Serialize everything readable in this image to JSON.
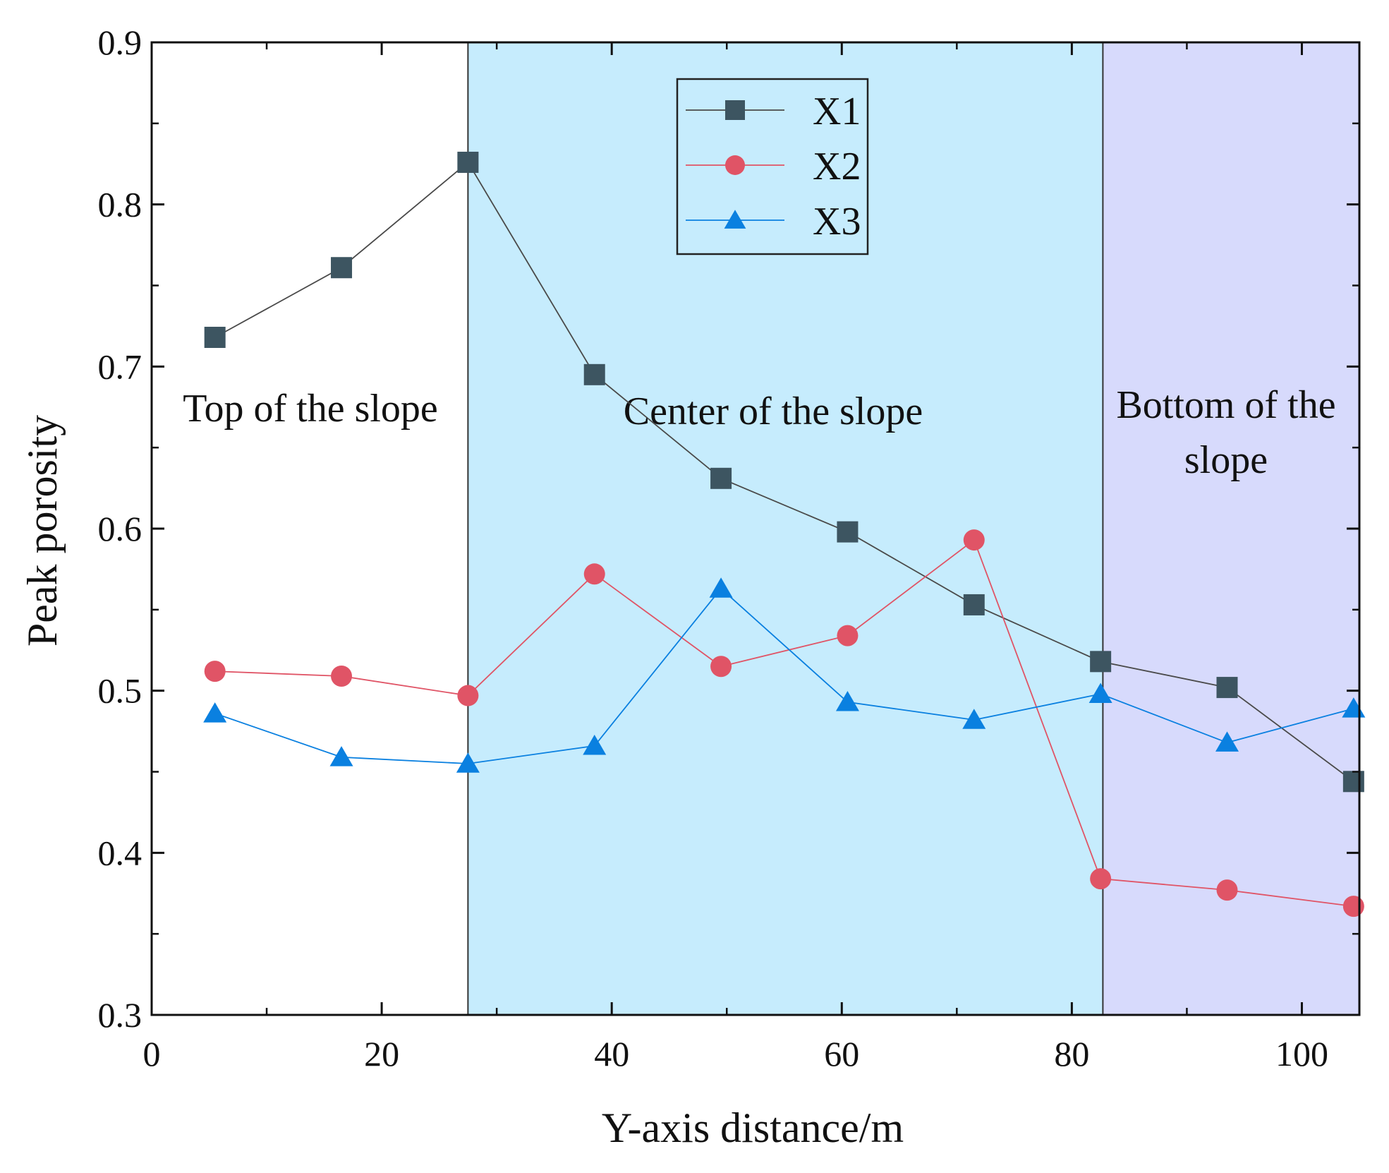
{
  "chart_data": {
    "type": "line",
    "xlabel": "Y-axis distance/m",
    "ylabel": "Peak porosity",
    "xlim": [
      0,
      105
    ],
    "ylim": [
      0.3,
      0.9
    ],
    "xticks": [
      0,
      20,
      40,
      60,
      80,
      100
    ],
    "xtick_labels": [
      "0",
      "20",
      "40",
      "60",
      "80",
      "100"
    ],
    "yticks": [
      0.3,
      0.4,
      0.5,
      0.6,
      0.7,
      0.8,
      0.9
    ],
    "ytick_labels": [
      "0.3",
      "0.4",
      "0.5",
      "0.6",
      "0.7",
      "0.8",
      "0.9"
    ],
    "legend_position": "top-center",
    "regions": [
      {
        "name": "top",
        "label_lines": [
          "Top of the slope"
        ],
        "x_range": [
          0,
          27.5
        ],
        "color": "#ffffff"
      },
      {
        "name": "center",
        "label_lines": [
          "Center of the slope"
        ],
        "x_range": [
          27.5,
          82.7
        ],
        "color": "#c6ecfd"
      },
      {
        "name": "bottom",
        "label_lines": [
          "Bottom of the",
          "slope"
        ],
        "x_range": [
          82.7,
          105
        ],
        "color": "#d7dafc"
      }
    ],
    "x": [
      5.5,
      16.5,
      27.5,
      38.5,
      49.5,
      60.5,
      71.5,
      82.5,
      93.5,
      104.5
    ],
    "series": [
      {
        "name": "X1",
        "marker": "square",
        "color": "#3d5561",
        "line_color": "#4a4a4a",
        "values": [
          0.718,
          0.761,
          0.826,
          0.695,
          0.631,
          0.598,
          0.553,
          0.518,
          0.502,
          0.444
        ]
      },
      {
        "name": "X2",
        "marker": "circle",
        "color": "#e05466",
        "line_color": "#e05466",
        "values": [
          0.512,
          0.509,
          0.497,
          0.572,
          0.515,
          0.534,
          0.593,
          0.384,
          0.377,
          0.367
        ]
      },
      {
        "name": "X3",
        "marker": "triangle",
        "color": "#0a80e0",
        "line_color": "#0a80e0",
        "values": [
          0.486,
          0.459,
          0.455,
          0.466,
          0.563,
          0.493,
          0.482,
          0.498,
          0.468,
          0.489
        ]
      }
    ]
  }
}
